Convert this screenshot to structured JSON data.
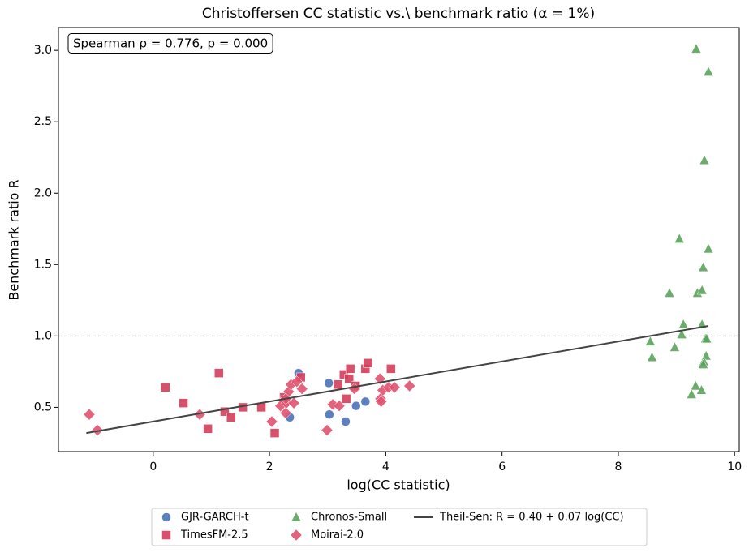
{
  "chart_data": {
    "type": "scatter",
    "title": "Christoffersen CC statistic vs.\\ benchmark ratio (α = 1%)",
    "annotation": "Spearman ρ = 0.776, p = 0.000",
    "x_label": "log(CC statistic)",
    "y_label": "Benchmark ratio R",
    "xlim": [
      -1.63,
      10.08
    ],
    "ylim": [
      0.19,
      3.16
    ],
    "xticks": [
      0,
      2,
      4,
      6,
      8,
      10
    ],
    "yticks": [
      0.5,
      {
        "value": 1,
        "label": "1.0"
      },
      1.5,
      {
        "value": 2,
        "label": "2.0"
      },
      2.5,
      {
        "value": 3,
        "label": "3.0"
      }
    ],
    "reference_line": 1,
    "series": [
      {
        "name": "GJR-GARCH-t",
        "color": "#4a72b8",
        "marker": "circle",
        "x": [
          2.5,
          2.35,
          3.02,
          3.03,
          3.31,
          3.49,
          3.65
        ],
        "values": [
          0.74,
          0.43,
          0.67,
          0.45,
          0.4,
          0.51,
          0.54
        ]
      },
      {
        "name": "TimesFM-2.5",
        "color": "#d43d5a",
        "marker": "square",
        "x": [
          0.21,
          0.52,
          1.13,
          0.94,
          1.23,
          1.34,
          1.54,
          1.86,
          2.09,
          2.25,
          2.26,
          2.54,
          3.18,
          3.32,
          3.28,
          3.37,
          3.39,
          3.48,
          3.65,
          3.69,
          4.09
        ],
        "values": [
          0.64,
          0.53,
          0.74,
          0.35,
          0.47,
          0.43,
          0.5,
          0.5,
          0.32,
          0.57,
          0.55,
          0.71,
          0.66,
          0.56,
          0.73,
          0.7,
          0.77,
          0.65,
          0.77,
          0.81,
          0.77
        ]
      },
      {
        "name": "Chronos-Small",
        "color": "#5aa35a",
        "marker": "triangle",
        "x": [
          9.34,
          9.55,
          9.48,
          9.55,
          9.05,
          9.46,
          8.88,
          9.36,
          9.44,
          9.12,
          9.44,
          9.09,
          8.55,
          9.5,
          9.52,
          8.97,
          8.58,
          9.51,
          9.47,
          9.46,
          9.33,
          9.43,
          9.26
        ],
        "values": [
          3.01,
          2.85,
          2.23,
          1.61,
          1.68,
          1.48,
          1.3,
          1.3,
          1.32,
          1.08,
          1.08,
          1.01,
          0.96,
          0.98,
          0.98,
          0.92,
          0.85,
          0.86,
          0.82,
          0.8,
          0.65,
          0.62,
          0.59
        ]
      },
      {
        "name": "Moirai-2.0",
        "color": "#e0526f",
        "marker": "diamond",
        "x": [
          -1.1,
          -0.96,
          0.8,
          2.04,
          2.19,
          2.28,
          2.29,
          2.33,
          2.42,
          2.37,
          2.47,
          2.56,
          2.99,
          3.09,
          3.2,
          3.46,
          3.9,
          3.91,
          3.92,
          3.95,
          4.05,
          4.15,
          4.41,
          2.28
        ],
        "values": [
          0.45,
          0.34,
          0.45,
          0.4,
          0.51,
          0.46,
          0.53,
          0.61,
          0.53,
          0.66,
          0.68,
          0.63,
          0.34,
          0.52,
          0.51,
          0.63,
          0.7,
          0.56,
          0.54,
          0.62,
          0.64,
          0.64,
          0.65,
          0.56
        ]
      },
      {
        "name": "Theil-Sen: R = 0.40 + 0.07 log(CC)",
        "color": "#444444",
        "marker": "line",
        "x": [
          -1.15,
          9.55
        ],
        "values": [
          0.32,
          1.07
        ]
      }
    ]
  }
}
